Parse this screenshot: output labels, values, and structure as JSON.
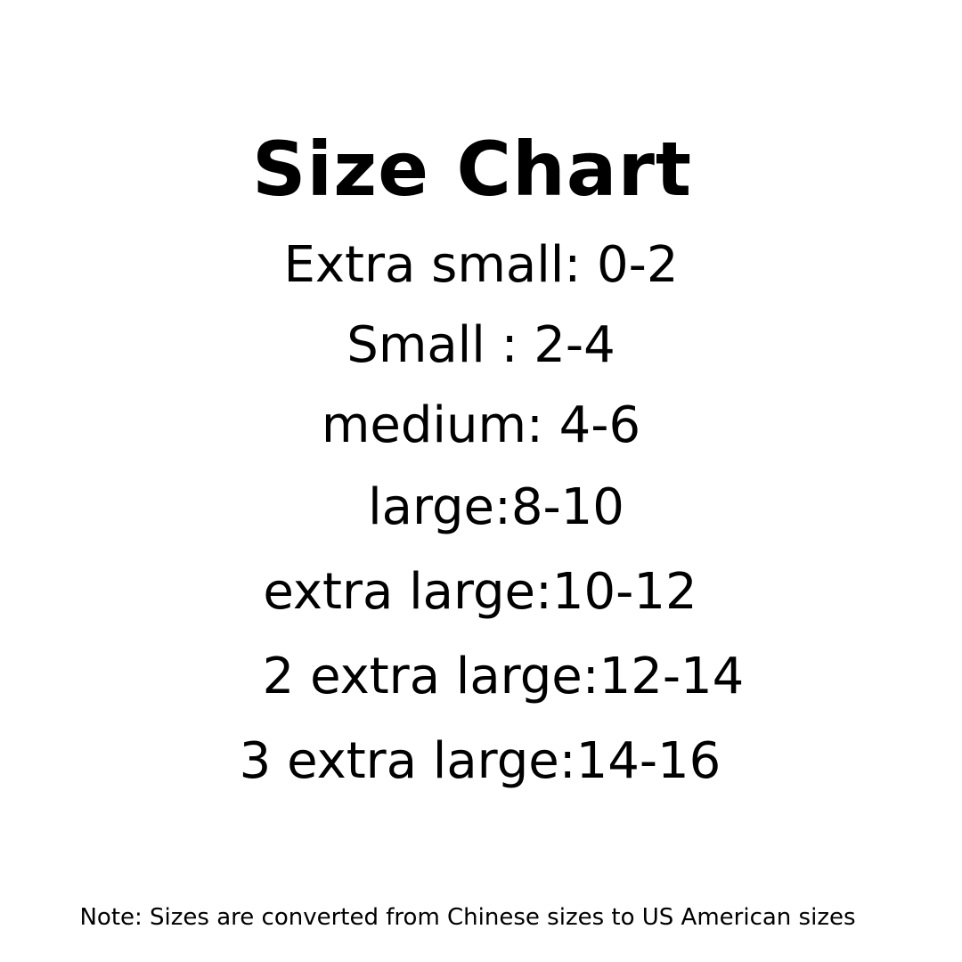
{
  "title": "Size Chart",
  "sizes": [
    "Extra small: 0-2",
    "Small : 2-4",
    "medium: 4-6",
    "large:8-10",
    "extra large:10-12",
    "2 extra large:12-14",
    "3 extra large:14-16"
  ],
  "note": "Note: Sizes are converted from Chinese sizes to US American sizes",
  "colors": {
    "text": "#000000",
    "background": "#ffffff"
  }
}
